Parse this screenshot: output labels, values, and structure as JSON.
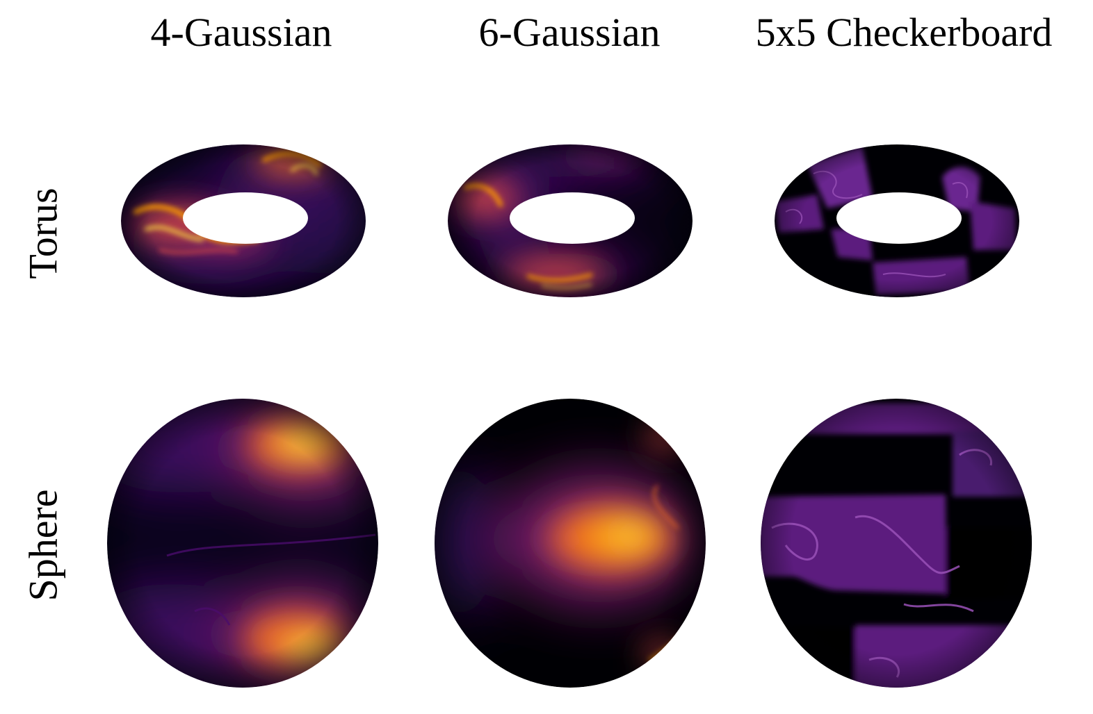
{
  "columns": [
    {
      "title": "4-Gaussian"
    },
    {
      "title": "6-Gaussian"
    },
    {
      "title": "5x5 Checkerboard"
    }
  ],
  "rows": [
    {
      "label": "Torus"
    },
    {
      "label": "Sphere"
    }
  ],
  "colormap": {
    "name": "inferno",
    "stops": [
      "#000004",
      "#1b0c41",
      "#4a0c6b",
      "#781c6d",
      "#a52c60",
      "#cf4446",
      "#ed6925",
      "#fb9b06",
      "#f7d13d",
      "#fcffa4"
    ]
  }
}
